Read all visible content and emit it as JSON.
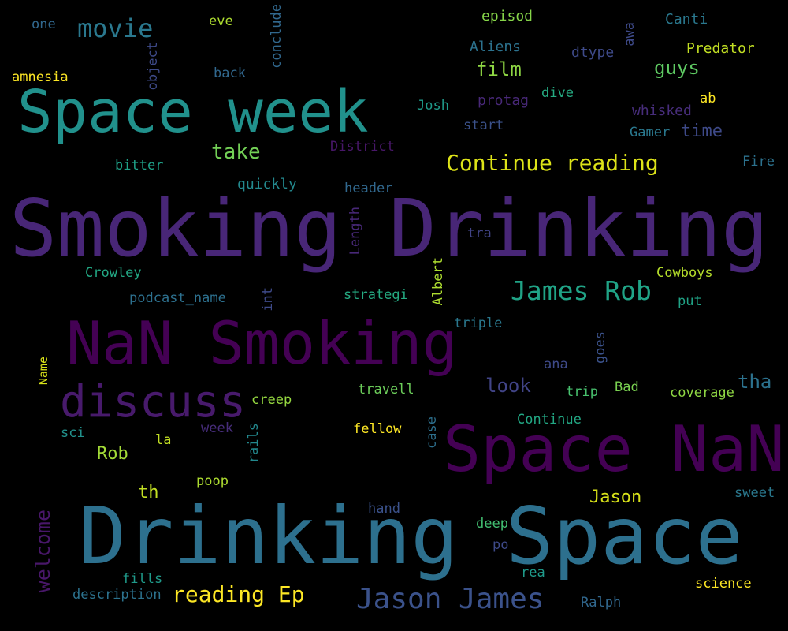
{
  "words": {
    "smoking_drinking": "Smoking Drinking",
    "drinking_space": "Drinking Space",
    "space_nan": "Space NaN",
    "nan_smoking": "NaN Smoking",
    "space_week": "Space week",
    "discuss": "discuss",
    "continue_reading": "Continue reading",
    "james_rob": "James Rob",
    "jason_james": "Jason James",
    "reading_ep": "reading Ep",
    "movie": "movie",
    "take": "take",
    "film": "film",
    "guys": "guys",
    "time": "time",
    "look": "look",
    "tha": "tha",
    "rob": "Rob",
    "jason": "Jason",
    "th": "th",
    "welcome": "welcome",
    "one": "one",
    "eve": "eve",
    "episod": "episod",
    "canti": "Canti",
    "aliens": "Aliens",
    "dtype": "dtype",
    "predator": "Predator",
    "amnesia": "amnesia",
    "back": "back",
    "josh": "Josh",
    "protag": "protag",
    "dive": "dive",
    "whisked": "whisked",
    "ab": "ab",
    "start": "start",
    "gamer": "Gamer",
    "district": "District",
    "fire": "Fire",
    "bitter": "bitter",
    "quickly": "quickly",
    "header": "header",
    "tra": "tra",
    "crowley": "Crowley",
    "cowboys": "Cowboys",
    "podcast_name": "podcast_name",
    "strategi": "strategi",
    "put": "put",
    "triple": "triple",
    "ana": "ana",
    "travell": "travell",
    "trip": "trip",
    "bad": "Bad",
    "coverage": "coverage",
    "creep": "creep",
    "continue": "Continue",
    "sci": "sci",
    "fellow": "fellow",
    "week": "week",
    "la": "la",
    "poop": "poop",
    "sweet": "sweet",
    "hand": "hand",
    "deep": "deep",
    "po": "po",
    "rea": "rea",
    "fills": "fills",
    "science": "science",
    "description": "description",
    "ralph": "Ralph",
    "conclude": "conclude",
    "awa": "awa",
    "object": "object",
    "length": "Length",
    "albert": "Albert",
    "int": "int",
    "goes": "goes",
    "name": "Name",
    "case": "case",
    "rails": "rails"
  }
}
